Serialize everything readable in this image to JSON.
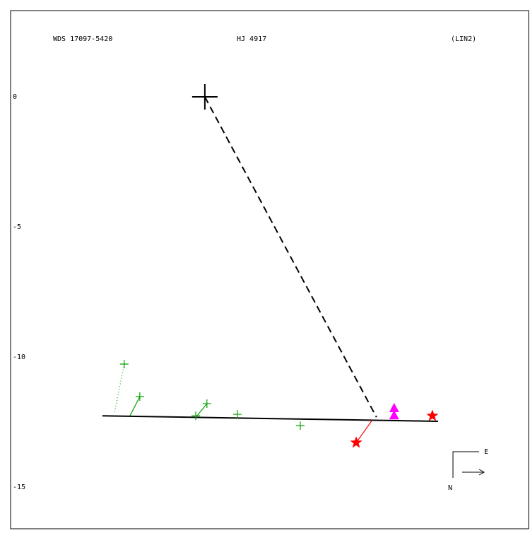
{
  "chart_data": {
    "type": "scatter",
    "title": "WDS 17097-5420",
    "subtitle": "HJ 4917",
    "annotation": "(LIN2)",
    "xlim": [
      -7.47,
      12.45
    ],
    "ylim": [
      -16.6,
      3.315
    ],
    "yticks": [
      0,
      -5,
      -10,
      -15
    ],
    "compass": {
      "east": "E",
      "north": "N"
    },
    "series": [
      {
        "style": "line",
        "color": "#000000",
        "x": [
          -3.94,
          8.97
        ],
        "y": [
          -12.26,
          -12.47
        ]
      },
      {
        "style": "dashed",
        "color": "#000000",
        "x": [
          0,
          6.6
        ],
        "y": [
          0,
          -12.31
        ]
      },
      {
        "marker": "cross",
        "color": "#000000",
        "x": [
          0
        ],
        "y": [
          0
        ]
      },
      {
        "marker": "plus",
        "color": "#00a000",
        "x": [
          -3.1,
          -2.5,
          -0.35,
          0.08,
          1.25,
          3.67
        ],
        "y": [
          -10.27,
          -11.52,
          -12.26,
          -11.79,
          -12.2,
          -12.64
        ],
        "x_fit": [
          -3.48,
          -2.88,
          null,
          -0.3,
          null,
          null
        ],
        "y_fit": [
          -12.17,
          -12.26,
          null,
          -12.26,
          null,
          null
        ],
        "dotted": [
          true,
          false,
          false,
          false,
          false,
          false
        ]
      },
      {
        "marker": "star",
        "color": "#ff0000",
        "x": [
          5.82,
          8.75
        ],
        "y": [
          -13.29,
          -12.26
        ],
        "x_fit": [
          6.44,
          null
        ],
        "y_fit": [
          -12.42,
          null
        ],
        "dotted": [
          false,
          false
        ]
      },
      {
        "marker": "triangle",
        "color": "#ff00ff",
        "x": [
          7.28,
          7.28
        ],
        "y": [
          -11.98,
          -12.26
        ]
      }
    ]
  }
}
